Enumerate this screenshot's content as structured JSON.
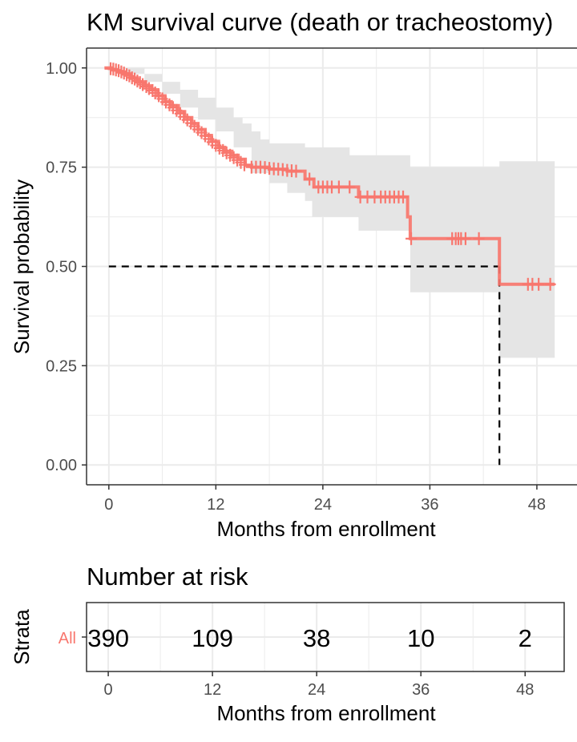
{
  "chart_data": [
    {
      "type": "line",
      "title": "KM survival curve (death or tracheostomy)",
      "xlabel": "Months from enrollment",
      "ylabel": "Survival probability",
      "xlim": [
        -2.5,
        52.5
      ],
      "ylim": [
        -0.05,
        1.05
      ],
      "x_ticks": [
        0,
        12,
        24,
        36,
        48
      ],
      "y_ticks": [
        0,
        0.25,
        0.5,
        0.75,
        1.0
      ],
      "y_tick_labels": [
        "0.00",
        "0.25",
        "0.50",
        "0.75",
        "1.00"
      ],
      "grid": true,
      "colors": {
        "curve": "#F8766D",
        "ci_band": "#e5e5e5",
        "median_line": "#000000",
        "grid": "#ebebeb",
        "text": "#4d4d4d"
      },
      "series": [
        {
          "steps": [
            [
              -0.5,
              1.0
            ],
            [
              0.3,
              0.995
            ],
            [
              1.0,
              0.99
            ],
            [
              1.8,
              0.985
            ],
            [
              2.5,
              0.975
            ],
            [
              3.2,
              0.965
            ],
            [
              4.0,
              0.955
            ],
            [
              4.8,
              0.945
            ],
            [
              5.5,
              0.93
            ],
            [
              6.3,
              0.915
            ],
            [
              7.0,
              0.905
            ],
            [
              7.8,
              0.89
            ],
            [
              8.5,
              0.875
            ],
            [
              9.3,
              0.86
            ],
            [
              10.0,
              0.845
            ],
            [
              10.8,
              0.83
            ],
            [
              11.5,
              0.815
            ],
            [
              12.3,
              0.8
            ],
            [
              13.0,
              0.79
            ],
            [
              13.8,
              0.78
            ],
            [
              14.5,
              0.77
            ],
            [
              15.3,
              0.755
            ],
            [
              16.0,
              0.75
            ],
            [
              18.0,
              0.745
            ],
            [
              20.0,
              0.74
            ],
            [
              22.0,
              0.72
            ],
            [
              23.0,
              0.7
            ],
            [
              28.0,
              0.675
            ],
            [
              33.5,
              0.625
            ],
            [
              33.8,
              0.57
            ],
            [
              43.8,
              0.57
            ],
            [
              43.8,
              0.455
            ],
            [
              50.0,
              0.455
            ]
          ],
          "ci_upper": [
            [
              -0.5,
              1.0
            ],
            [
              2.0,
              1.0
            ],
            [
              4.0,
              0.985
            ],
            [
              6.0,
              0.965
            ],
            [
              8.0,
              0.945
            ],
            [
              10.0,
              0.925
            ],
            [
              12.0,
              0.9
            ],
            [
              14.0,
              0.875
            ],
            [
              15.0,
              0.86
            ],
            [
              16.0,
              0.84
            ],
            [
              17.0,
              0.82
            ],
            [
              18.0,
              0.81
            ],
            [
              22.0,
              0.8
            ],
            [
              27.0,
              0.78
            ],
            [
              33.8,
              0.75
            ],
            [
              43.8,
              0.75
            ],
            [
              43.8,
              0.765
            ],
            [
              50.0,
              0.765
            ]
          ],
          "ci_lower": [
            [
              -0.5,
              1.0
            ],
            [
              2.0,
              0.985
            ],
            [
              4.0,
              0.965
            ],
            [
              6.0,
              0.935
            ],
            [
              8.0,
              0.9
            ],
            [
              10.0,
              0.87
            ],
            [
              12.0,
              0.84
            ],
            [
              14.0,
              0.8
            ],
            [
              16.0,
              0.735
            ],
            [
              18.0,
              0.71
            ],
            [
              20.0,
              0.685
            ],
            [
              22.0,
              0.665
            ],
            [
              22.8,
              0.625
            ],
            [
              28.0,
              0.59
            ],
            [
              33.8,
              0.435
            ],
            [
              43.8,
              0.435
            ],
            [
              43.8,
              0.27
            ],
            [
              50.0,
              0.27
            ]
          ],
          "censor_marks": [
            [
              0.2,
              0.998
            ],
            [
              0.5,
              0.997
            ],
            [
              0.8,
              0.995
            ],
            [
              1.1,
              0.993
            ],
            [
              1.4,
              0.99
            ],
            [
              1.7,
              0.987
            ],
            [
              2.0,
              0.983
            ],
            [
              2.3,
              0.98
            ],
            [
              2.6,
              0.975
            ],
            [
              2.9,
              0.972
            ],
            [
              3.2,
              0.967
            ],
            [
              3.5,
              0.963
            ],
            [
              3.8,
              0.958
            ],
            [
              4.2,
              0.953
            ],
            [
              4.5,
              0.948
            ],
            [
              4.9,
              0.943
            ],
            [
              5.2,
              0.937
            ],
            [
              5.6,
              0.93
            ],
            [
              6.0,
              0.922
            ],
            [
              6.4,
              0.914
            ],
            [
              6.8,
              0.907
            ],
            [
              7.2,
              0.9
            ],
            [
              7.6,
              0.893
            ],
            [
              8.0,
              0.885
            ],
            [
              8.4,
              0.877
            ],
            [
              8.8,
              0.869
            ],
            [
              9.2,
              0.861
            ],
            [
              9.6,
              0.853
            ],
            [
              10.0,
              0.845
            ],
            [
              10.4,
              0.837
            ],
            [
              10.8,
              0.829
            ],
            [
              11.2,
              0.821
            ],
            [
              11.6,
              0.813
            ],
            [
              12.0,
              0.805
            ],
            [
              12.4,
              0.798
            ],
            [
              12.8,
              0.792
            ],
            [
              13.2,
              0.786
            ],
            [
              13.6,
              0.78
            ],
            [
              14.0,
              0.774
            ],
            [
              14.4,
              0.768
            ],
            [
              14.8,
              0.762
            ],
            [
              15.2,
              0.756
            ],
            [
              16.0,
              0.75
            ],
            [
              16.5,
              0.75
            ],
            [
              17.0,
              0.75
            ],
            [
              17.5,
              0.749
            ],
            [
              18.0,
              0.747
            ],
            [
              18.5,
              0.746
            ],
            [
              19.0,
              0.745
            ],
            [
              19.5,
              0.744
            ],
            [
              20.0,
              0.742
            ],
            [
              20.5,
              0.741
            ],
            [
              21.0,
              0.74
            ],
            [
              22.5,
              0.72
            ],
            [
              23.5,
              0.7
            ],
            [
              24.0,
              0.7
            ],
            [
              24.5,
              0.7
            ],
            [
              25.0,
              0.7
            ],
            [
              25.8,
              0.7
            ],
            [
              27.0,
              0.7
            ],
            [
              28.2,
              0.675
            ],
            [
              29.0,
              0.675
            ],
            [
              29.8,
              0.675
            ],
            [
              30.5,
              0.675
            ],
            [
              31.0,
              0.675
            ],
            [
              31.5,
              0.675
            ],
            [
              32.0,
              0.675
            ],
            [
              32.5,
              0.675
            ],
            [
              33.0,
              0.675
            ],
            [
              33.9,
              0.57
            ],
            [
              38.5,
              0.57
            ],
            [
              38.9,
              0.57
            ],
            [
              39.2,
              0.57
            ],
            [
              39.5,
              0.57
            ],
            [
              40.0,
              0.57
            ],
            [
              41.5,
              0.57
            ],
            [
              47.0,
              0.455
            ],
            [
              47.5,
              0.455
            ],
            [
              48.2,
              0.455
            ],
            [
              49.5,
              0.455
            ]
          ]
        }
      ],
      "median": {
        "survival": 0.5,
        "time": 43.8
      }
    },
    {
      "type": "table",
      "title": "Number at risk",
      "xlabel": "Months from enrollment",
      "ylabel": "Strata",
      "row_label": "All",
      "x_ticks": [
        0,
        12,
        24,
        36,
        48
      ],
      "xlim": [
        -2.5,
        52.5
      ],
      "values": [
        "390",
        "109",
        "38",
        "10",
        "2"
      ]
    }
  ]
}
